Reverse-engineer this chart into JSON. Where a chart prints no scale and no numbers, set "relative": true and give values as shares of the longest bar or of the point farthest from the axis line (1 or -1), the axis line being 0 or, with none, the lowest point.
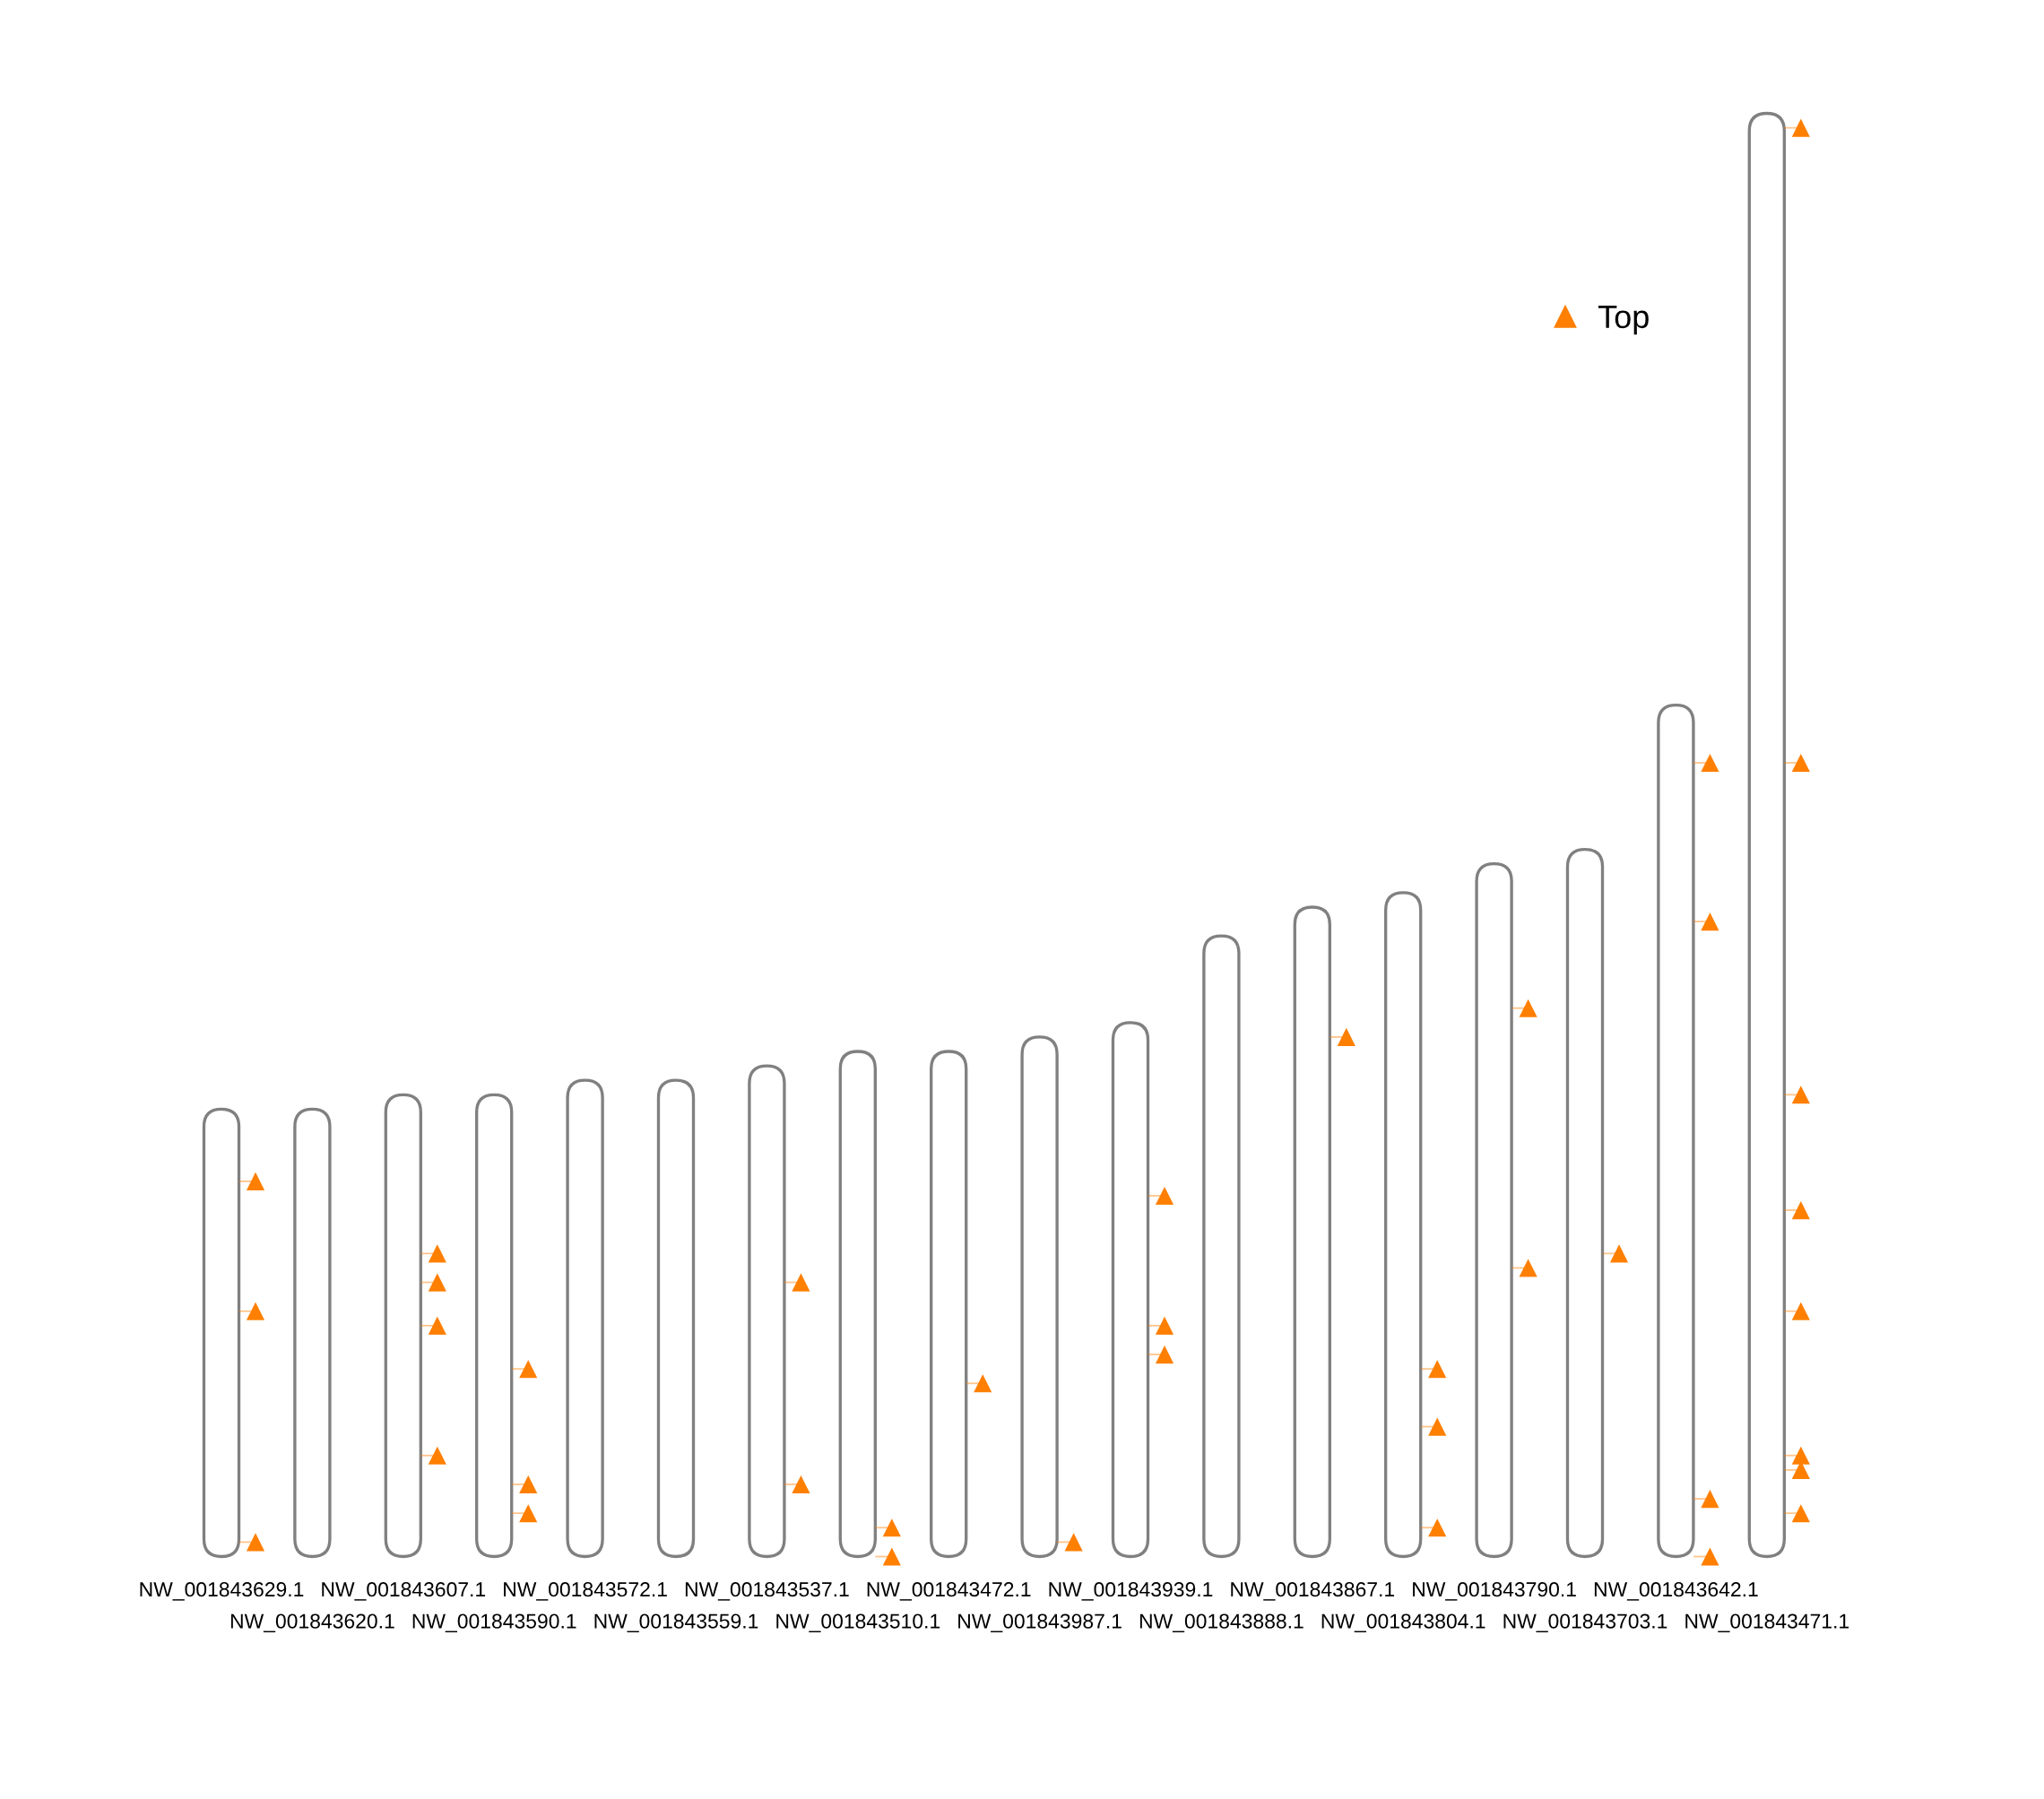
{
  "chart_data": {
    "type": "bar",
    "relative": true,
    "categories": [
      "NW_001843629.1",
      "NW_001843620.1",
      "NW_001843607.1",
      "NW_001843590.1",
      "NW_001843572.1",
      "NW_001843559.1",
      "NW_001843537.1",
      "NW_001843510.1",
      "NW_001843472.1",
      "NW_001843987.1",
      "NW_001843939.1",
      "NW_001843888.1",
      "NW_001843867.1",
      "NW_001843804.1",
      "NW_001843790.1",
      "NW_001843703.1",
      "NW_001843642.1",
      "NW_001843471.1"
    ],
    "series": [
      {
        "color": "#808080",
        "values": [
          0.31,
          0.31,
          0.32,
          0.32,
          0.33,
          0.33,
          0.34,
          0.35,
          0.35,
          0.36,
          0.37,
          0.43,
          0.45,
          0.46,
          0.48,
          0.49,
          0.59,
          1.0
        ]
      },
      {
        "type": "scatter",
        "name": "Top",
        "color": "#ff7f00",
        "x": [
          "NW_001843629.1",
          "NW_001843629.1",
          "NW_001843629.1",
          "NW_001843607.1",
          "NW_001843607.1",
          "NW_001843607.1",
          "NW_001843607.1",
          "NW_001843590.1",
          "NW_001843590.1",
          "NW_001843590.1",
          "NW_001843537.1",
          "NW_001843537.1",
          "NW_001843510.1",
          "NW_001843510.1",
          "NW_001843472.1",
          "NW_001843987.1",
          "NW_001843939.1",
          "NW_001843939.1",
          "NW_001843939.1",
          "NW_001843867.1",
          "NW_001843804.1",
          "NW_001843804.1",
          "NW_001843804.1",
          "NW_001843790.1",
          "NW_001843790.1",
          "NW_001843703.1",
          "NW_001843642.1",
          "NW_001843642.1",
          "NW_001843642.1",
          "NW_001843642.1",
          "NW_001843471.1",
          "NW_001843471.1",
          "NW_001843471.1",
          "NW_001843471.1",
          "NW_001843471.1",
          "NW_001843471.1",
          "NW_001843471.1",
          "NW_001843471.1"
        ],
        "values": [
          0.26,
          0.17,
          0.01,
          0.21,
          0.19,
          0.16,
          0.07,
          0.13,
          0.05,
          0.03,
          0.19,
          0.05,
          0.02,
          0.0,
          0.12,
          0.01,
          0.25,
          0.16,
          0.14,
          0.36,
          0.13,
          0.09,
          0.02,
          0.38,
          0.2,
          0.21,
          0.55,
          0.44,
          0.04,
          0.0,
          0.99,
          0.55,
          0.32,
          0.24,
          0.17,
          0.07,
          0.06,
          0.03
        ]
      }
    ],
    "marker": "triangle",
    "legend": "top right"
  }
}
